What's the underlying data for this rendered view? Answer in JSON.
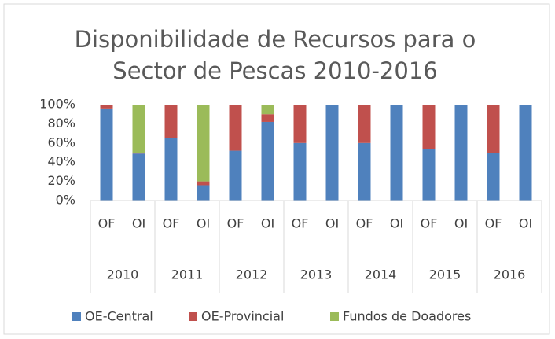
{
  "chart_data": {
    "type": "stacked_bar_100",
    "title": "Disponibilidade de Recursos para o Sector de Pescas 2010-2016",
    "categories": [
      "OF",
      "OI",
      "OF",
      "OI",
      "OF",
      "OI",
      "OF",
      "OI",
      "OF",
      "OI",
      "OF",
      "OI",
      "OF",
      "OI"
    ],
    "groups": [
      "2010",
      "2011",
      "2012",
      "2013",
      "2014",
      "2015",
      "2016"
    ],
    "series": [
      {
        "name": "OE-Central",
        "color": "#4f81bd",
        "values": [
          96,
          49,
          65,
          16,
          52,
          82,
          60,
          100,
          60,
          100,
          54,
          100,
          50,
          100
        ]
      },
      {
        "name": "OE-Provincial",
        "color": "#c0504d",
        "values": [
          4,
          1,
          35,
          4,
          48,
          8,
          40,
          0,
          40,
          0,
          46,
          0,
          50,
          0
        ]
      },
      {
        "name": "Fundos de Doadores",
        "color": "#9bbb59",
        "values": [
          0,
          50,
          0,
          80,
          0,
          10,
          0,
          0,
          0,
          0,
          0,
          0,
          0,
          0
        ]
      }
    ],
    "ylim": [
      0,
      100
    ],
    "yticks": [
      {
        "value": 0,
        "label": "0%"
      },
      {
        "value": 20,
        "label": "20%"
      },
      {
        "value": 40,
        "label": "40%"
      },
      {
        "value": 60,
        "label": "60%"
      },
      {
        "value": 80,
        "label": "80%"
      },
      {
        "value": 100,
        "label": "100%"
      }
    ],
    "legend": "bottom"
  }
}
